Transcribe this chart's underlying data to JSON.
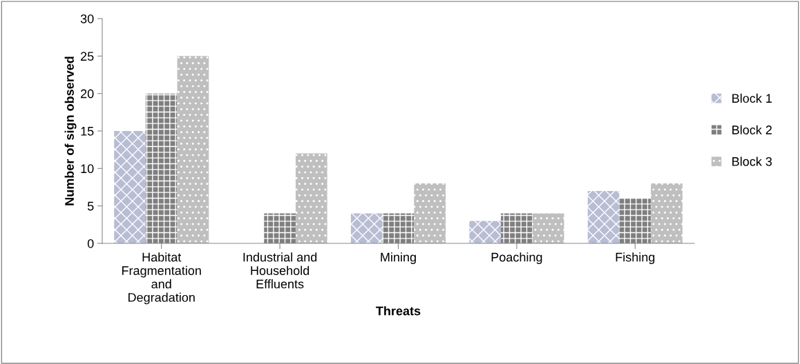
{
  "chart_data": {
    "type": "bar",
    "xlabel": "Threats",
    "ylabel": "Number of sign observed",
    "categories": [
      "Habitat\nFragmentation\nand\nDegradation",
      "Industrial and\nHousehold\nEffluents",
      "Mining",
      "Poaching",
      "Fishing"
    ],
    "series": [
      {
        "name": "Block 1",
        "color": "#b8bdd4",
        "values": [
          15,
          0,
          4,
          3,
          7
        ]
      },
      {
        "name": "Block 2",
        "color": "#7f7f7f",
        "values": [
          20,
          4,
          4,
          4,
          6
        ]
      },
      {
        "name": "Block 3",
        "color": "#bfbfbf",
        "values": [
          25,
          12,
          8,
          4,
          8
        ]
      }
    ],
    "ylim": [
      0,
      30
    ],
    "yticks": [
      0,
      5,
      10,
      15,
      20,
      25,
      30
    ],
    "grid": false,
    "legend": "right"
  }
}
